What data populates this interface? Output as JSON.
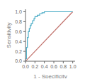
{
  "chart_data": {
    "type": "line",
    "xlabel": "1 - Specificity",
    "ylabel": "Sensitivity",
    "series": [
      {
        "color": "#c0706a",
        "x": [
          0.0,
          1.0
        ],
        "values": [
          0.0,
          1.0
        ]
      },
      {
        "color": "#4bacc6",
        "x": [
          0.0,
          0.0,
          0.02,
          0.02,
          0.04,
          0.04,
          0.06,
          0.06,
          0.08,
          0.08,
          0.1,
          0.1,
          0.12,
          0.12,
          0.15,
          0.15,
          0.18,
          0.18,
          0.2,
          0.2,
          0.25,
          0.25,
          0.3,
          0.3,
          0.35,
          0.35,
          0.4,
          0.4,
          0.5,
          0.5,
          1.0
        ],
        "values": [
          0.0,
          0.05,
          0.05,
          0.28,
          0.28,
          0.48,
          0.48,
          0.6,
          0.6,
          0.66,
          0.66,
          0.72,
          0.72,
          0.76,
          0.76,
          0.82,
          0.82,
          0.86,
          0.86,
          0.9,
          0.9,
          0.93,
          0.93,
          0.96,
          0.96,
          0.98,
          0.98,
          1.0,
          1.0,
          1.0,
          1.0
        ]
      }
    ],
    "xlim": [
      0.0,
      1.05
    ],
    "ylim": [
      0.0,
      1.05
    ],
    "xticks": [
      {
        "value": 0.0,
        "label": "0.0"
      },
      0.2,
      0.4,
      0.6,
      0.8,
      {
        "value": 1.0,
        "label": "1.0"
      }
    ],
    "yticks": [
      {
        "value": 0.0,
        "label": "0.0"
      },
      0.2,
      0.4,
      0.6,
      0.8,
      {
        "value": 1.0,
        "label": "1.0"
      }
    ]
  }
}
